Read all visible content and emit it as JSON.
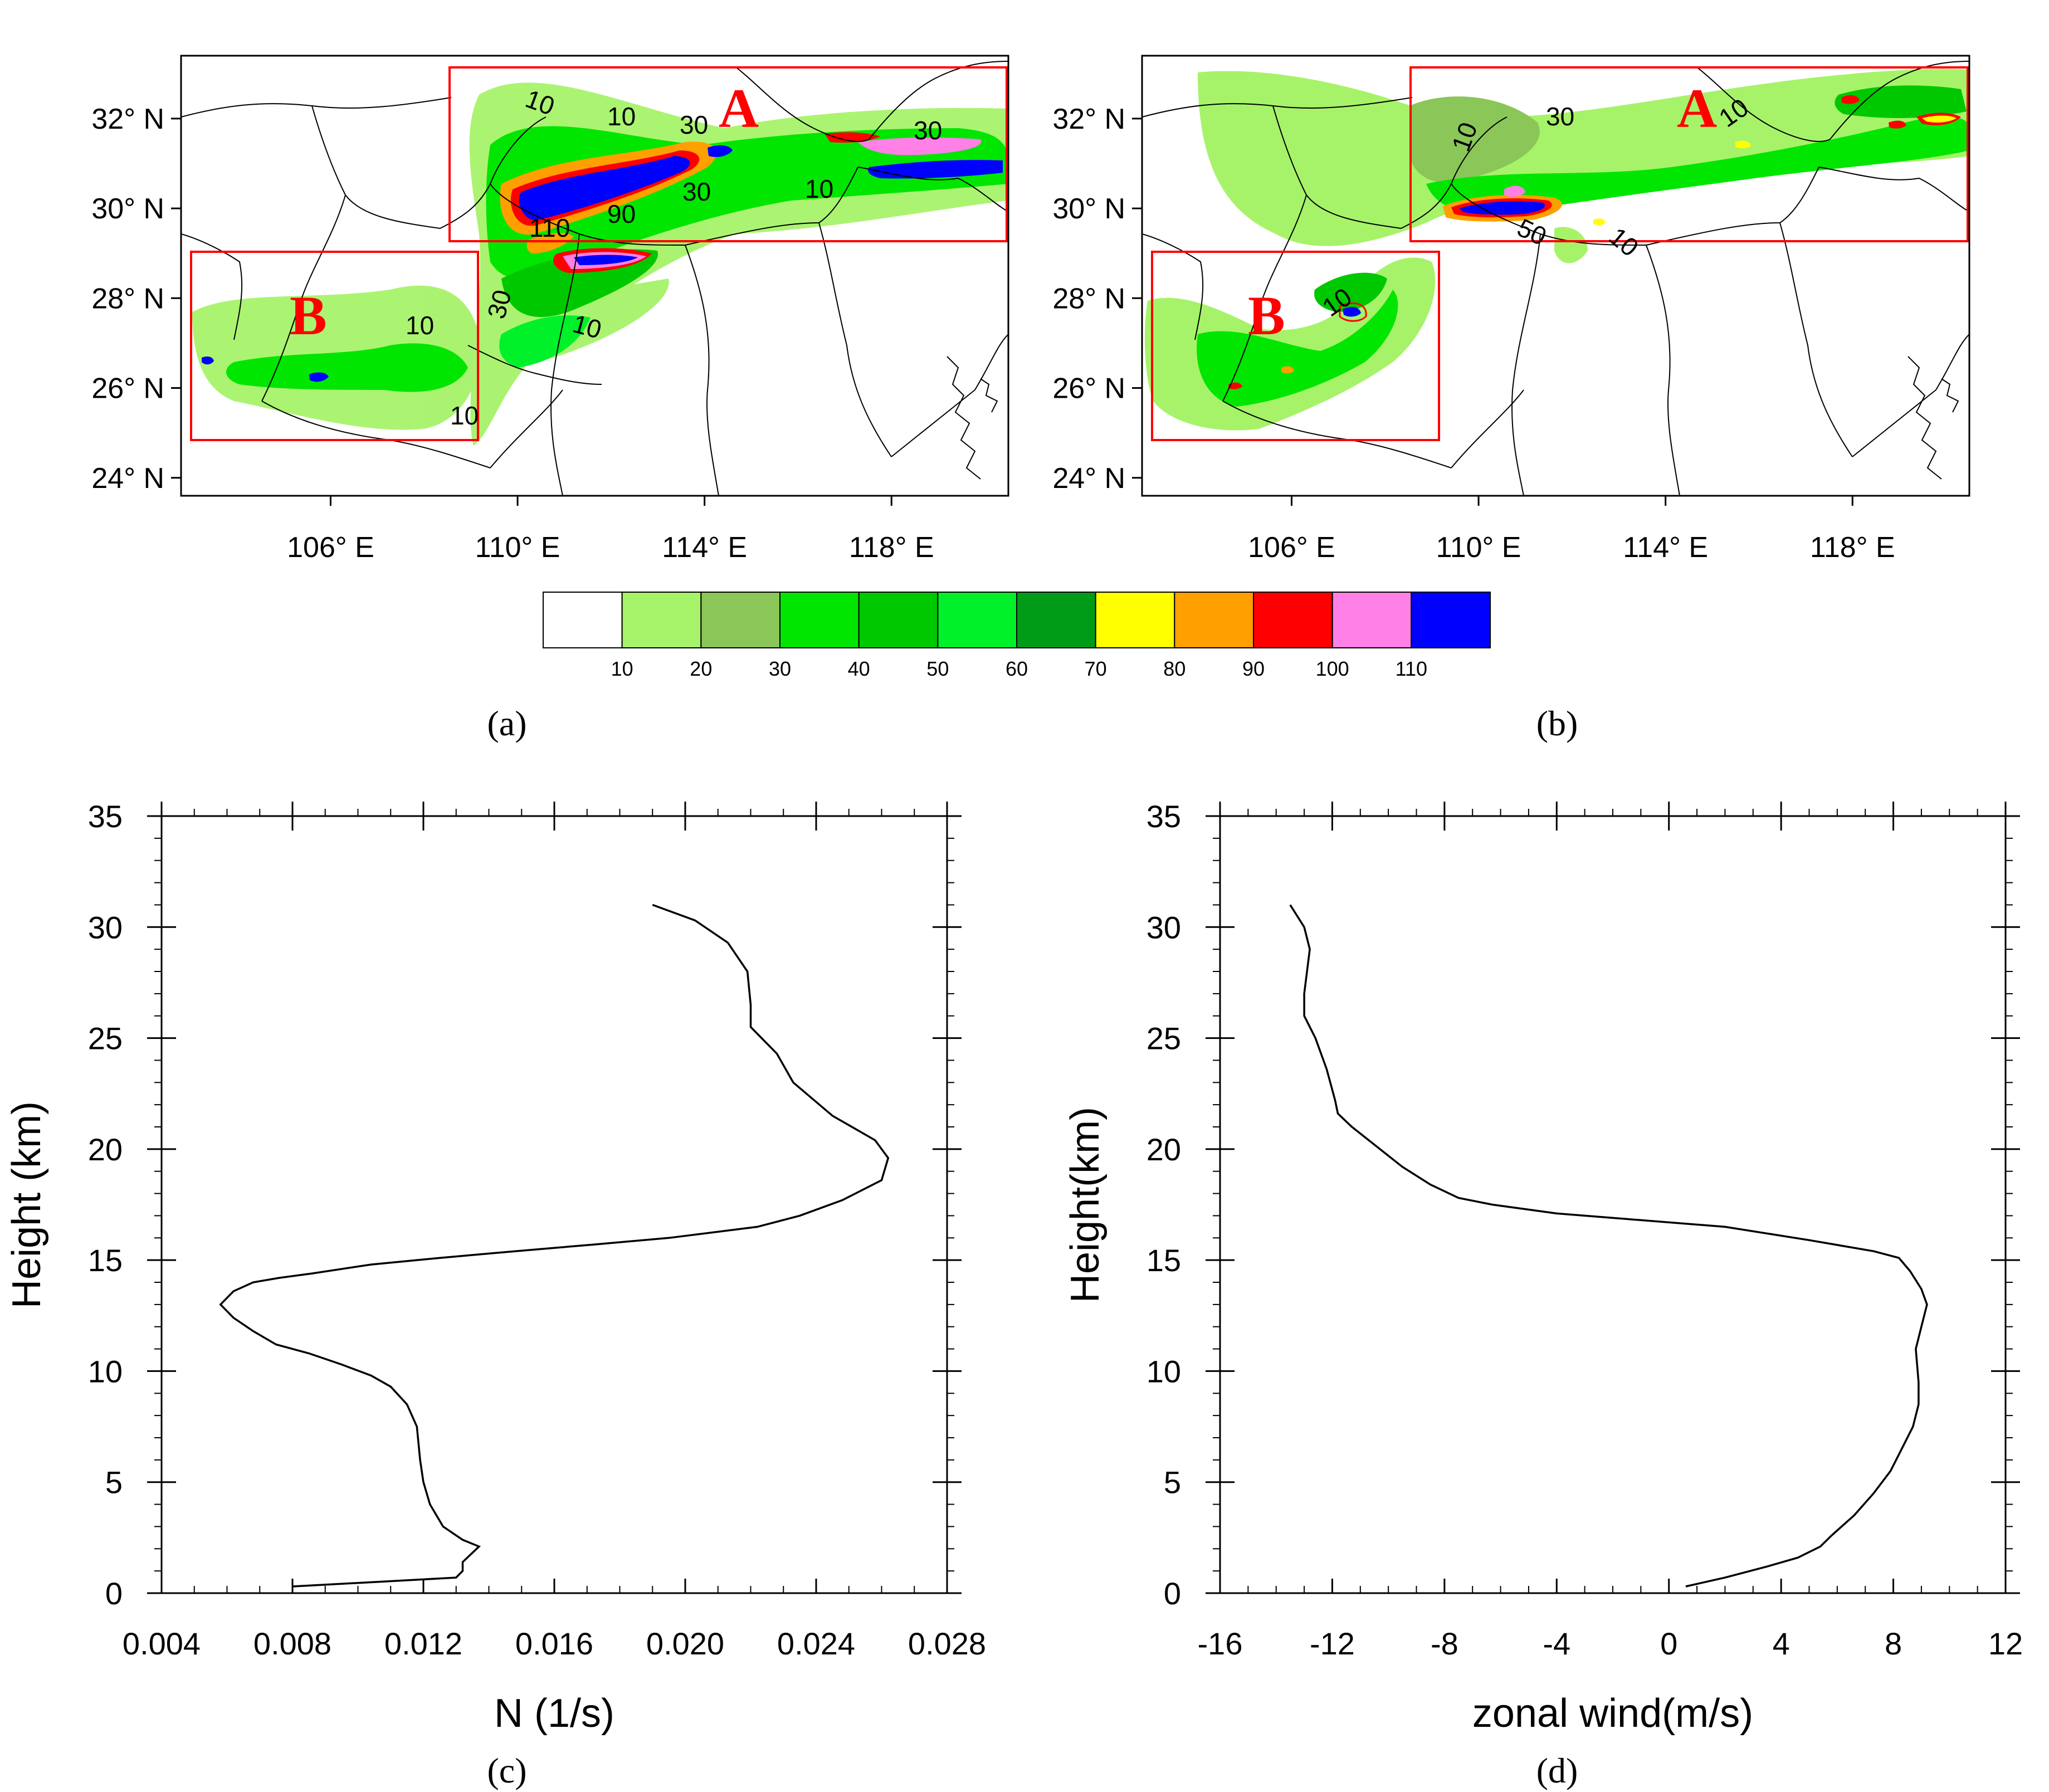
{
  "figure": {
    "panel_labels": [
      "(a)",
      "(b)",
      "(c)",
      "(d)"
    ]
  },
  "colors": {
    "contour_levels": [
      "#ffffff",
      "#a6f36a",
      "#8bc659",
      "#00e600",
      "#00c800",
      "#00f02a",
      "#009c18",
      "#ffff00",
      "#ffa000",
      "#ff0000",
      "#ff80e6",
      "#0000ff"
    ],
    "box": "#ff0000",
    "region_label": "#ff0000",
    "line": "#000000"
  },
  "colorbar": {
    "tick_labels": [
      "10",
      "20",
      "30",
      "40",
      "50",
      "60",
      "70",
      "80",
      "90",
      "100",
      "110"
    ]
  },
  "chart_data": [
    {
      "type": "heatmap",
      "panel": "(a)",
      "x_tick_labels": [
        "106° E",
        "110° E",
        "114° E",
        "118° E"
      ],
      "y_tick_labels": [
        "32° N",
        "30° N",
        "28° N",
        "26° N",
        "24° N"
      ],
      "xlim": [
        102.8,
        120.5
      ],
      "ylim": [
        23.6,
        33.4
      ],
      "boxes": [
        {
          "label": "A",
          "lon": [
            108.7,
            120.4
          ],
          "lat": [
            29.4,
            33.1
          ]
        },
        {
          "label": "B",
          "lon": [
            103.0,
            109.2
          ],
          "lat": [
            25.1,
            29.1
          ]
        }
      ],
      "contour_labels": [
        "10",
        "10",
        "30",
        "30",
        "90",
        "110",
        "30",
        "10",
        "10",
        "30",
        "10",
        "10"
      ]
    },
    {
      "type": "heatmap",
      "panel": "(b)",
      "x_tick_labels": [
        "106° E",
        "110° E",
        "114° E",
        "118° E"
      ],
      "y_tick_labels": [
        "32° N",
        "30° N",
        "28° N",
        "26° N",
        "24° N"
      ],
      "xlim": [
        102.8,
        120.5
      ],
      "ylim": [
        23.6,
        33.4
      ],
      "boxes": [
        {
          "label": "A",
          "lon": [
            108.7,
            120.4
          ],
          "lat": [
            29.4,
            33.1
          ]
        },
        {
          "label": "B",
          "lon": [
            103.0,
            109.2
          ],
          "lat": [
            25.1,
            29.1
          ]
        }
      ],
      "contour_labels": [
        "30",
        "10",
        "10",
        "50",
        "10",
        "10"
      ]
    },
    {
      "type": "line",
      "panel": "(c)",
      "xlabel": "N (1/s)",
      "ylabel": "Height (km)",
      "xlim": [
        0.004,
        0.028
      ],
      "ylim": [
        0,
        35
      ],
      "x_tick_labels": [
        "0.004",
        "0.008",
        "0.012",
        "0.016",
        "0.020",
        "0.024",
        "0.028"
      ],
      "y_tick_labels": [
        "0",
        "5",
        "10",
        "15",
        "20",
        "25",
        "30",
        "35"
      ],
      "x": [
        0.008,
        0.0105,
        0.013,
        0.0132,
        0.0132,
        0.0137,
        0.0132,
        0.0126,
        0.0122,
        0.012,
        0.0119,
        0.0118,
        0.0115,
        0.011,
        0.0104,
        0.0095,
        0.0085,
        0.0075,
        0.0068,
        0.0062,
        0.0058,
        0.0062,
        0.0068,
        0.0076,
        0.0086,
        0.0104,
        0.0125,
        0.0148,
        0.0172,
        0.0195,
        0.0222,
        0.0235,
        0.0248,
        0.026,
        0.0262,
        0.0258,
        0.0245,
        0.0233,
        0.0228,
        0.022,
        0.022,
        0.0219,
        0.0213,
        0.0203,
        0.019
      ],
      "y": [
        0.3,
        0.5,
        0.7,
        1.0,
        1.4,
        2.1,
        2.4,
        3.0,
        4.0,
        5.0,
        6.0,
        7.5,
        8.5,
        9.3,
        9.8,
        10.3,
        10.8,
        11.2,
        11.8,
        12.4,
        13.0,
        13.6,
        14.0,
        14.2,
        14.4,
        14.8,
        15.1,
        15.4,
        15.7,
        16.0,
        16.5,
        17.0,
        17.7,
        18.6,
        19.6,
        20.4,
        21.5,
        23.0,
        24.3,
        25.5,
        26.5,
        28.0,
        29.3,
        30.3,
        31.0
      ]
    },
    {
      "type": "line",
      "panel": "(d)",
      "xlabel": "zonal wind(m/s)",
      "ylabel": "Height(km)",
      "xlim": [
        -16,
        12
      ],
      "ylim": [
        0,
        35
      ],
      "x_tick_labels": [
        "-16",
        "-12",
        "-8",
        "-4",
        "0",
        "4",
        "8",
        "12"
      ],
      "y_tick_labels": [
        "0",
        "5",
        "10",
        "15",
        "20",
        "25",
        "30",
        "35"
      ],
      "x": [
        0.6,
        2.0,
        3.5,
        4.6,
        5.4,
        5.8,
        6.6,
        7.3,
        7.9,
        8.3,
        8.7,
        8.9,
        8.9,
        8.8,
        9.0,
        9.2,
        9.0,
        8.6,
        8.2,
        7.3,
        5.0,
        2.0,
        -1.0,
        -4.0,
        -6.3,
        -7.5,
        -8.5,
        -9.5,
        -10.5,
        -11.3,
        -11.8,
        -11.9,
        -12.2,
        -12.6,
        -13.0,
        -13.0,
        -12.9,
        -12.8,
        -13.0,
        -13.5
      ],
      "y": [
        0.3,
        0.7,
        1.2,
        1.6,
        2.1,
        2.6,
        3.5,
        4.5,
        5.5,
        6.5,
        7.5,
        8.5,
        9.5,
        11.0,
        12.0,
        13.0,
        13.7,
        14.5,
        15.1,
        15.4,
        15.9,
        16.5,
        16.8,
        17.1,
        17.5,
        17.8,
        18.4,
        19.2,
        20.2,
        21.0,
        21.6,
        22.2,
        23.6,
        25.0,
        26.0,
        27.0,
        28.0,
        29.0,
        30.0,
        31.0
      ]
    }
  ]
}
